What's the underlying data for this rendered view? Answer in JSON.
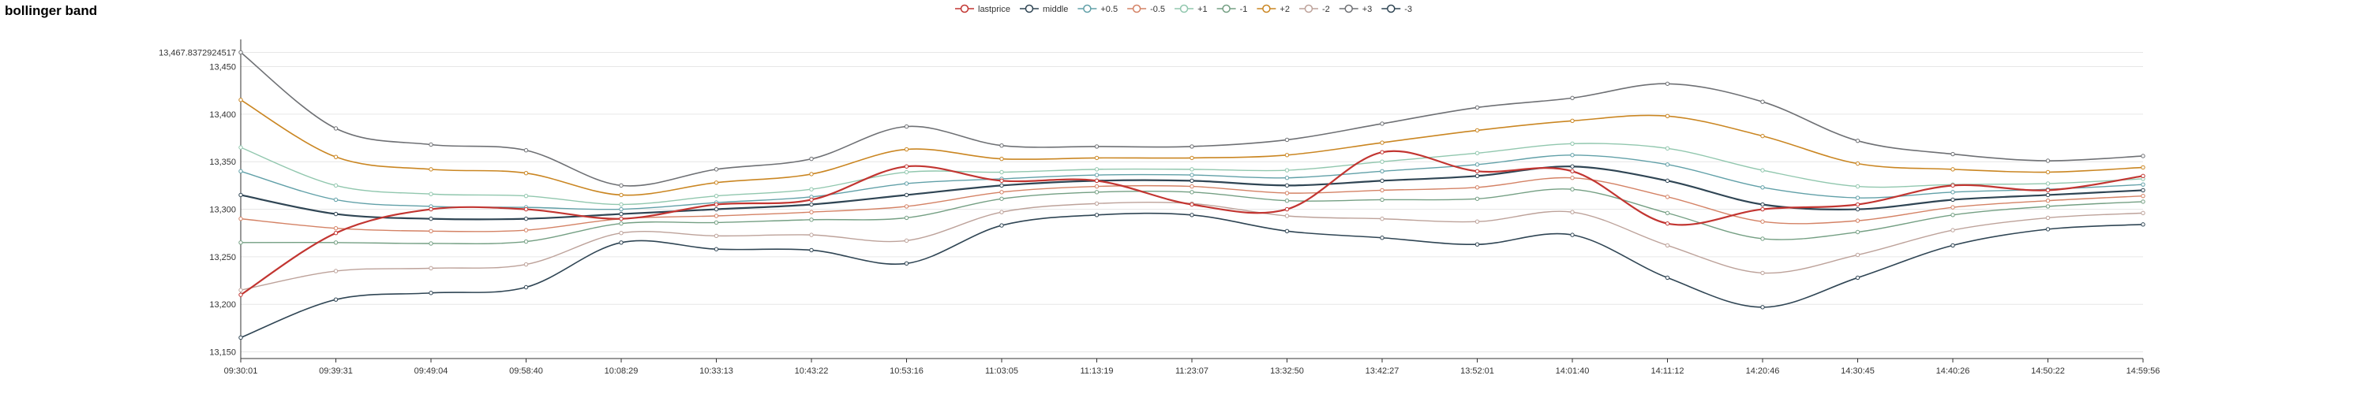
{
  "chart_data": {
    "type": "line",
    "title": "bollinger band",
    "xlabel": "",
    "ylabel": "",
    "ylim": [
      13143,
      13472
    ],
    "y_max_label": "13,467.8372924517",
    "y_ticks": [
      "13,150",
      "13,200",
      "13,250",
      "13,300",
      "13,350",
      "13,400",
      "13,450"
    ],
    "y_tick_values": [
      13150,
      13200,
      13250,
      13300,
      13350,
      13400,
      13450
    ],
    "x_tick_labels": [
      "09:30:01",
      "09:39:31",
      "09:49:04",
      "09:58:40",
      "10:08:29",
      "10:33:13",
      "10:43:22",
      "10:53:16",
      "11:03:05",
      "11:13:19",
      "11:23:07",
      "13:32:50",
      "13:42:27",
      "13:52:01",
      "14:01:40",
      "14:11:12",
      "14:20:46",
      "14:30:45",
      "14:40:26",
      "14:50:22",
      "14:59:56"
    ],
    "grid": "horizontal",
    "legend_position": "top-center",
    "x": [
      0,
      1,
      2,
      3,
      4,
      5,
      6,
      7,
      8,
      9,
      10,
      11,
      12,
      13,
      14,
      15,
      16,
      17,
      18,
      19,
      20
    ],
    "series": [
      {
        "name": "lastprice",
        "color": "#c23531",
        "width": 2.2,
        "values": [
          13210,
          13275,
          13300,
          13300,
          13290,
          13305,
          13310,
          13345,
          13330,
          13330,
          13305,
          13300,
          13360,
          13340,
          13340,
          13285,
          13300,
          13305,
          13325,
          13320,
          13335
        ]
      },
      {
        "name": "middle",
        "color": "#2f4554",
        "width": 2.2,
        "values": [
          13315,
          13295,
          13290,
          13290,
          13295,
          13300,
          13305,
          13315,
          13325,
          13330,
          13330,
          13325,
          13330,
          13335,
          13345,
          13330,
          13305,
          13300,
          13310,
          13315,
          13320
        ]
      },
      {
        "name": "+0.5",
        "color": "#61a0a8",
        "width": 1.4,
        "values": [
          13340,
          13310,
          13303,
          13302,
          13300,
          13307,
          13313,
          13327,
          13332,
          13336,
          13336,
          13333,
          13340,
          13347,
          13357,
          13347,
          13323,
          13312,
          13318,
          13321,
          13326
        ]
      },
      {
        "name": "-0.5",
        "color": "#d48265",
        "width": 1.4,
        "values": [
          13290,
          13280,
          13277,
          13278,
          13290,
          13293,
          13297,
          13303,
          13318,
          13324,
          13324,
          13317,
          13320,
          13323,
          13333,
          13313,
          13287,
          13288,
          13302,
          13309,
          13314
        ]
      },
      {
        "name": "+1",
        "color": "#91c7ae",
        "width": 1.4,
        "values": [
          13365,
          13325,
          13316,
          13314,
          13305,
          13314,
          13321,
          13339,
          13339,
          13342,
          13342,
          13341,
          13350,
          13359,
          13369,
          13364,
          13341,
          13324,
          13326,
          13327,
          13332
        ]
      },
      {
        "name": "-1",
        "color": "#749f83",
        "width": 1.4,
        "values": [
          13265,
          13265,
          13264,
          13266,
          13285,
          13286,
          13289,
          13291,
          13311,
          13318,
          13318,
          13309,
          13310,
          13311,
          13321,
          13296,
          13269,
          13276,
          13294,
          13303,
          13308
        ]
      },
      {
        "name": "+2",
        "color": "#ca8622",
        "width": 1.6,
        "values": [
          13415,
          13355,
          13342,
          13338,
          13315,
          13328,
          13337,
          13363,
          13353,
          13354,
          13354,
          13357,
          13370,
          13383,
          13393,
          13398,
          13377,
          13348,
          13342,
          13339,
          13344
        ]
      },
      {
        "name": "-2",
        "color": "#bda29a",
        "width": 1.4,
        "values": [
          13215,
          13235,
          13238,
          13242,
          13275,
          13272,
          13273,
          13267,
          13297,
          13306,
          13306,
          13293,
          13290,
          13287,
          13297,
          13262,
          13233,
          13252,
          13278,
          13291,
          13296
        ]
      },
      {
        "name": "+3",
        "color": "#6e7074",
        "width": 1.6,
        "values": [
          13465,
          13385,
          13368,
          13362,
          13325,
          13342,
          13353,
          13387,
          13367,
          13366,
          13366,
          13373,
          13390,
          13407,
          13417,
          13432,
          13413,
          13372,
          13358,
          13351,
          13356
        ]
      },
      {
        "name": "-3",
        "color": "#2f4554",
        "width": 1.6,
        "values": [
          13165,
          13205,
          13212,
          13218,
          13265,
          13258,
          13257,
          13243,
          13283,
          13294,
          13294,
          13277,
          13270,
          13263,
          13273,
          13228,
          13197,
          13228,
          13262,
          13279,
          13284
        ]
      }
    ]
  }
}
